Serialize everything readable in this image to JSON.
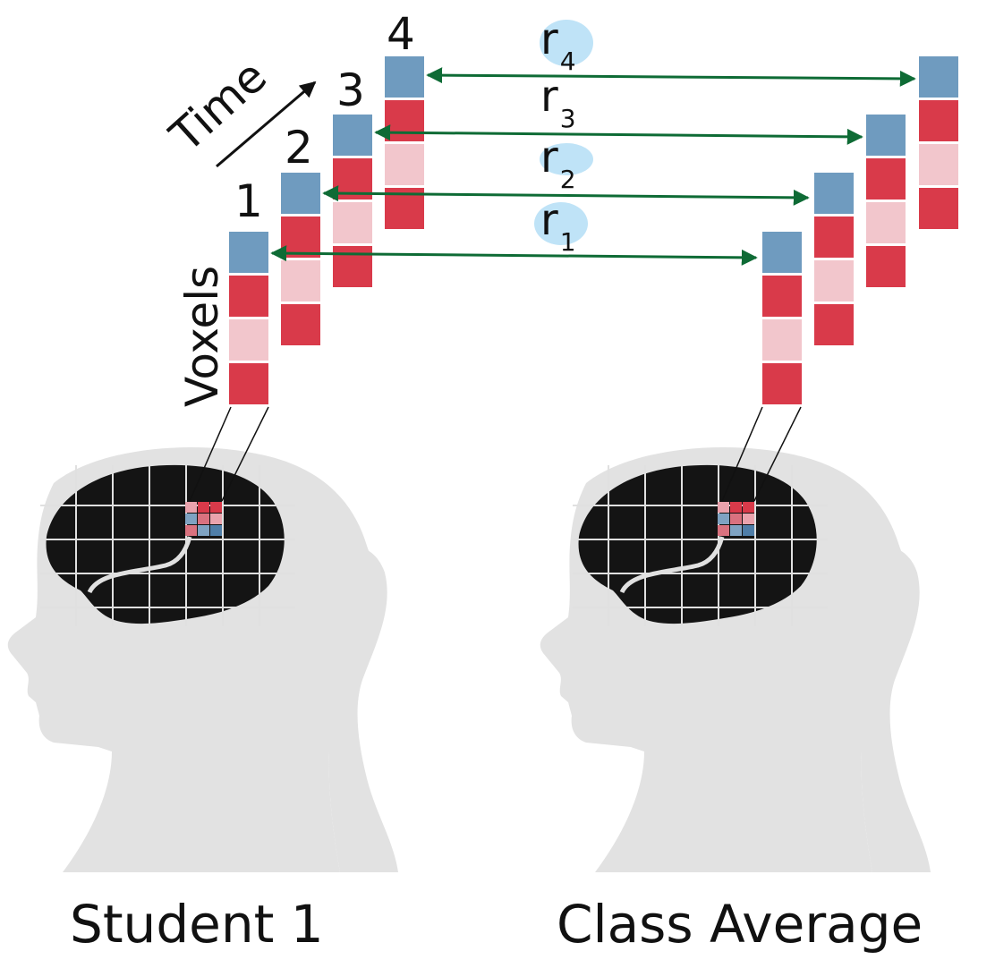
{
  "labels": {
    "time": "Time",
    "voxels": "Voxels",
    "student": "Student 1",
    "average": "Class Average"
  },
  "timepoints": [
    "1",
    "2",
    "3",
    "4"
  ],
  "correlations": [
    {
      "base": "r",
      "sub": "1"
    },
    {
      "base": "r",
      "sub": "2"
    },
    {
      "base": "r",
      "sub": "3"
    },
    {
      "base": "r",
      "sub": "4"
    }
  ],
  "colors": {
    "voxel_blue": "#6f9bbf",
    "voxel_red": "#d93a4a",
    "voxel_pink": "#f2c6cc",
    "arrow": "#0e6b35",
    "head": "#e2e2e2",
    "brain": "#141414",
    "highlight": "#bfe3f7"
  },
  "voxel_column_pattern": [
    "blue",
    "red",
    "pink",
    "red"
  ],
  "brain_patch_pattern": [
    "pink",
    "red",
    "red",
    "blue",
    "red",
    "pink",
    "red",
    "blue",
    "darkblue"
  ]
}
